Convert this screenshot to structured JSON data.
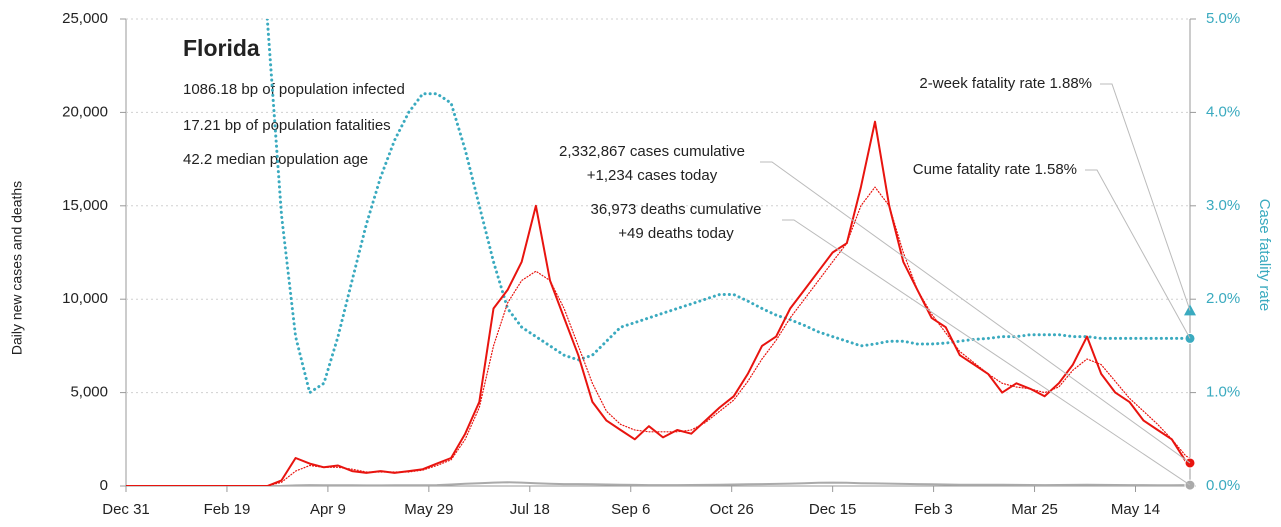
{
  "chart_data": {
    "type": "line",
    "title": "Florida",
    "subtitle": [
      "1086.18 bp of population infected",
      "17.21 bp of population fatalities",
      "42.2 median population age"
    ],
    "ylabel": "Daily new cases and deaths",
    "y2label": "Case fatality rate",
    "x": [
      0,
      7,
      14,
      21,
      28,
      35,
      42,
      49,
      56,
      63,
      70,
      77,
      84,
      91,
      98,
      105,
      112,
      119,
      126,
      133,
      140,
      147,
      154,
      161,
      168,
      175,
      182,
      189,
      196,
      203,
      210,
      217,
      224,
      231,
      238,
      245,
      252,
      259,
      266,
      273,
      280,
      287,
      294,
      301,
      308,
      315,
      322,
      329,
      336,
      343,
      350,
      357,
      364,
      371,
      378,
      385,
      392,
      399,
      406,
      413,
      420,
      427,
      434,
      441,
      448,
      455,
      462,
      469,
      476,
      483,
      490,
      497,
      504,
      511,
      518,
      525,
      527
    ],
    "xlim": [
      0,
      527
    ],
    "xticks": [
      {
        "value": 0,
        "label": "Dec 31"
      },
      {
        "value": 50,
        "label": "Feb 19"
      },
      {
        "value": 100,
        "label": "Apr 9"
      },
      {
        "value": 150,
        "label": "May 29"
      },
      {
        "value": 200,
        "label": "Jul 18"
      },
      {
        "value": 250,
        "label": "Sep 6"
      },
      {
        "value": 300,
        "label": "Oct 26"
      },
      {
        "value": 350,
        "label": "Dec 15"
      },
      {
        "value": 400,
        "label": "Feb 3"
      },
      {
        "value": 450,
        "label": "Mar 25"
      },
      {
        "value": 500,
        "label": "May 14"
      }
    ],
    "ylim": [
      0,
      25000
    ],
    "yticks": [
      0,
      {
        "value": 5000,
        "label": "5,000"
      },
      {
        "value": 10000,
        "label": "10,000"
      },
      {
        "value": 15000,
        "label": "15,000"
      },
      {
        "value": 20000,
        "label": "20,000"
      },
      {
        "value": 25000,
        "label": "25,000"
      }
    ],
    "y2lim": [
      0,
      5
    ],
    "y2ticks": [
      {
        "value": 0,
        "label": "0.0%"
      },
      {
        "value": 1,
        "label": "1.0%"
      },
      {
        "value": 2,
        "label": "2.0%"
      },
      {
        "value": 3,
        "label": "3.0%"
      },
      {
        "value": 4,
        "label": "4.0%"
      },
      {
        "value": 5,
        "label": "5.0%"
      }
    ],
    "grid": true,
    "series": [
      {
        "color": "#aaaaaa",
        "style": "solid",
        "values": [
          0,
          0,
          0,
          0,
          0,
          0,
          0,
          0,
          0,
          0,
          0,
          5,
          30,
          50,
          40,
          40,
          40,
          30,
          30,
          40,
          40,
          40,
          50,
          80,
          120,
          150,
          180,
          200,
          180,
          150,
          120,
          100,
          100,
          90,
          80,
          70,
          60,
          50,
          50,
          50,
          55,
          60,
          70,
          80,
          90,
          100,
          110,
          130,
          150,
          170,
          180,
          170,
          150,
          140,
          130,
          110,
          100,
          90,
          80,
          70,
          70,
          70,
          65,
          60,
          55,
          50,
          55,
          60,
          65,
          60,
          55,
          50,
          50,
          45,
          45,
          50,
          49
        ]
      },
      {
        "color": "#3aaabf",
        "style": "dotted",
        "axis": "y2",
        "values": [
          null,
          null,
          null,
          null,
          null,
          null,
          null,
          null,
          null,
          null,
          5.0,
          2.9,
          1.6,
          1.0,
          1.1,
          1.6,
          2.2,
          2.8,
          3.3,
          3.7,
          4.0,
          4.2,
          4.2,
          4.1,
          3.6,
          3.0,
          2.4,
          1.9,
          1.7,
          1.6,
          1.5,
          1.4,
          1.35,
          1.4,
          1.55,
          1.7,
          1.75,
          1.8,
          1.85,
          1.9,
          1.95,
          2.0,
          2.05,
          2.05,
          1.98,
          1.9,
          1.83,
          1.78,
          1.72,
          1.65,
          1.6,
          1.55,
          1.5,
          1.52,
          1.55,
          1.55,
          1.52,
          1.52,
          1.53,
          1.55,
          1.57,
          1.58,
          1.6,
          1.6,
          1.62,
          1.62,
          1.62,
          1.6,
          1.6,
          1.58,
          1.58,
          1.58,
          1.58,
          1.58,
          1.58,
          1.58,
          1.58
        ]
      },
      {
        "color": "#e8140f",
        "style": "dotted",
        "values": [
          0,
          0,
          0,
          0,
          0,
          0,
          0,
          0,
          0,
          0,
          0,
          200,
          800,
          1100,
          1000,
          1000,
          900,
          750,
          750,
          750,
          750,
          850,
          1100,
          1400,
          2500,
          4200,
          7500,
          9800,
          11000,
          11500,
          11000,
          9500,
          7500,
          5500,
          4000,
          3300,
          3000,
          2900,
          2900,
          2900,
          3000,
          3400,
          4000,
          4600,
          5600,
          6800,
          7800,
          9000,
          10000,
          11000,
          12000,
          13000,
          15000,
          16000,
          15000,
          12500,
          10500,
          9200,
          8200,
          7200,
          6600,
          6000,
          5500,
          5300,
          5200,
          5000,
          5300,
          6200,
          6800,
          6500,
          5600,
          4700,
          4000,
          3300,
          2500,
          1600,
          1500
        ]
      },
      {
        "color": "#e8140f",
        "style": "solid",
        "values": [
          0,
          0,
          0,
          0,
          0,
          0,
          0,
          0,
          0,
          0,
          0,
          300,
          1500,
          1200,
          1000,
          1100,
          800,
          700,
          800,
          700,
          800,
          900,
          1200,
          1500,
          2800,
          4500,
          9500,
          10500,
          12000,
          15000,
          11000,
          9000,
          7000,
          4500,
          3500,
          3000,
          2500,
          3200,
          2600,
          3000,
          2800,
          3500,
          4200,
          4800,
          6000,
          7500,
          8000,
          9500,
          10500,
          11500,
          12500,
          13000,
          16000,
          19500,
          15000,
          12000,
          10500,
          9000,
          8500,
          7000,
          6500,
          6000,
          5000,
          5500,
          5200,
          4800,
          5500,
          6500,
          8000,
          6000,
          5000,
          4500,
          3500,
          3000,
          2500,
          1300,
          1234
        ]
      }
    ],
    "markers": [
      {
        "axis": "y2",
        "value": 1.88,
        "shape": "triangle",
        "color": "#3aaabf"
      },
      {
        "axis": "y2",
        "value": 1.58,
        "shape": "circle",
        "color": "#3aaabf"
      },
      {
        "value": 1234,
        "shape": "circle",
        "color": "#e8140f"
      },
      {
        "value": 49,
        "shape": "circle",
        "color": "#aaaaaa"
      }
    ],
    "annotations": [
      {
        "lines": [
          "2-week fatality rate 1.88%"
        ],
        "marker": 0
      },
      {
        "lines": [
          "Cume fatality rate 1.58%"
        ],
        "marker": 1
      },
      {
        "lines": [
          "2,332,867 cases cumulative",
          "+1,234 cases today"
        ],
        "marker": 2
      },
      {
        "lines": [
          "36,973 deaths cumulative",
          "+49 deaths today"
        ],
        "marker": 3
      }
    ]
  }
}
